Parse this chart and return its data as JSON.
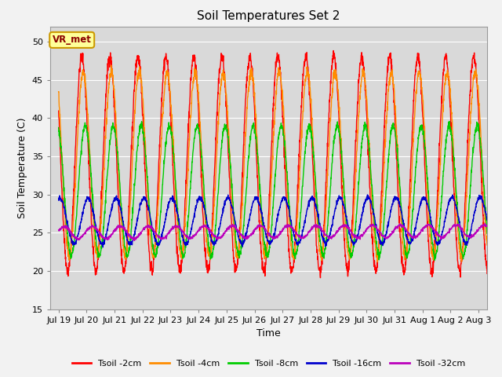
{
  "title": "Soil Temperatures Set 2",
  "xlabel": "Time",
  "ylabel": "Soil Temperature (C)",
  "ylim": [
    15,
    52
  ],
  "yticks": [
    15,
    20,
    25,
    30,
    35,
    40,
    45,
    50
  ],
  "colors": {
    "Tsoil -2cm": "#ff0000",
    "Tsoil -4cm": "#ff8c00",
    "Tsoil -8cm": "#00cc00",
    "Tsoil -16cm": "#0000cc",
    "Tsoil -32cm": "#bb00bb"
  },
  "legend_labels": [
    "Tsoil -2cm",
    "Tsoil -4cm",
    "Tsoil -8cm",
    "Tsoil -16cm",
    "Tsoil -32cm"
  ],
  "xtick_labels": [
    "Jul 19",
    "Jul 20",
    "Jul 21",
    "Jul 22",
    "Jul 23",
    "Jul 24",
    "Jul 25",
    "Jul 26",
    "Jul 27",
    "Jul 28",
    "Jul 29",
    "Jul 30",
    "Jul 31",
    "Aug 1",
    "Aug 2",
    "Aug 3"
  ],
  "annotation": "VR_met",
  "fig_facecolor": "#f2f2f2",
  "plot_facecolor": "#d9d9d9",
  "title_fontsize": 11,
  "axis_fontsize": 9,
  "tick_fontsize": 8
}
